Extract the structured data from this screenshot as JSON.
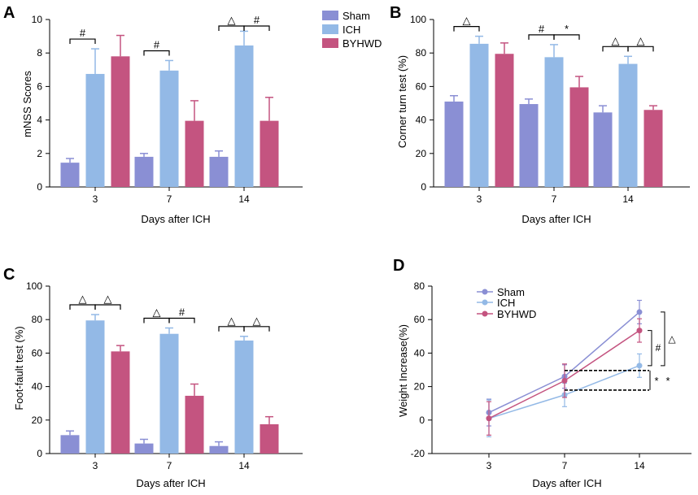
{
  "colors": {
    "Sham": "#8a8fd4",
    "ICH": "#93b9e6",
    "BYHWD": "#c45480"
  },
  "legend": [
    "Sham",
    "ICH",
    "BYHWD"
  ],
  "chart_data": [
    {
      "panel": "A",
      "type": "bar",
      "xlabel": "Days after ICH",
      "ylabel": "mNSS Scores",
      "categories": [
        "3",
        "7",
        "14"
      ],
      "ylim": [
        0,
        10
      ],
      "yticks": [
        0,
        2,
        4,
        6,
        8,
        10
      ],
      "series": [
        {
          "name": "Sham",
          "values": [
            1.45,
            1.8,
            1.8
          ],
          "errors": [
            0.25,
            0.2,
            0.35
          ]
        },
        {
          "name": "ICH",
          "values": [
            6.75,
            6.95,
            8.45
          ],
          "errors": [
            1.5,
            0.6,
            0.85
          ]
        },
        {
          "name": "BYHWD",
          "values": [
            7.8,
            3.95,
            3.95
          ],
          "errors": [
            1.25,
            1.2,
            1.4
          ]
        }
      ],
      "annotations": [
        {
          "group": 0,
          "between": [
            0,
            1
          ],
          "symbol": "#"
        },
        {
          "group": 1,
          "between": [
            0,
            1
          ],
          "symbol": "#"
        },
        {
          "group": 2,
          "between": [
            0,
            1
          ],
          "symbol": "△"
        },
        {
          "group": 2,
          "between": [
            1,
            2
          ],
          "symbol": "#"
        }
      ]
    },
    {
      "panel": "B",
      "type": "bar",
      "xlabel": "Days after ICH",
      "ylabel": "Corner turn test (%)",
      "categories": [
        "3",
        "7",
        "14"
      ],
      "ylim": [
        0,
        100
      ],
      "yticks": [
        0,
        20,
        40,
        60,
        80,
        100
      ],
      "series": [
        {
          "name": "Sham",
          "values": [
            51,
            49.5,
            44.5
          ],
          "errors": [
            3.5,
            3,
            4
          ]
        },
        {
          "name": "ICH",
          "values": [
            85.5,
            77.5,
            73.5
          ],
          "errors": [
            4.5,
            7.5,
            4.5
          ]
        },
        {
          "name": "BYHWD",
          "values": [
            79.5,
            59.5,
            46
          ],
          "errors": [
            6.5,
            6.5,
            2.5
          ]
        }
      ],
      "annotations": [
        {
          "group": 0,
          "between": [
            0,
            1
          ],
          "symbol": "△"
        },
        {
          "group": 1,
          "between": [
            0,
            1
          ],
          "symbol": "#"
        },
        {
          "group": 1,
          "between": [
            1,
            2
          ],
          "symbol": "*"
        },
        {
          "group": 2,
          "between": [
            0,
            1
          ],
          "symbol": "△"
        },
        {
          "group": 2,
          "between": [
            1,
            2
          ],
          "symbol": "△"
        }
      ]
    },
    {
      "panel": "C",
      "type": "bar",
      "xlabel": "Days after ICH",
      "ylabel": "Foot-fault test (%)",
      "categories": [
        "3",
        "7",
        "14"
      ],
      "ylim": [
        0,
        100
      ],
      "yticks": [
        0,
        20,
        40,
        60,
        80,
        100
      ],
      "series": [
        {
          "name": "Sham",
          "values": [
            11,
            6,
            4.5
          ],
          "errors": [
            2.5,
            2.5,
            2.5
          ]
        },
        {
          "name": "ICH",
          "values": [
            79.5,
            71.5,
            67.5
          ],
          "errors": [
            3.5,
            3.5,
            2.5
          ]
        },
        {
          "name": "BYHWD",
          "values": [
            61,
            34.5,
            17.5
          ],
          "errors": [
            3.5,
            7,
            4.5
          ]
        }
      ],
      "annotations": [
        {
          "group": 0,
          "between": [
            0,
            1
          ],
          "symbol": "△"
        },
        {
          "group": 0,
          "between": [
            1,
            2
          ],
          "symbol": "△"
        },
        {
          "group": 1,
          "between": [
            0,
            1
          ],
          "symbol": "△"
        },
        {
          "group": 1,
          "between": [
            1,
            2
          ],
          "symbol": "#"
        },
        {
          "group": 2,
          "between": [
            0,
            1
          ],
          "symbol": "△"
        },
        {
          "group": 2,
          "between": [
            1,
            2
          ],
          "symbol": "△"
        }
      ]
    },
    {
      "panel": "D",
      "type": "line",
      "xlabel": "Days after ICH",
      "ylabel": "Weight Increase(%)",
      "x": [
        "3",
        "7",
        "14"
      ],
      "ylim": [
        -20,
        80
      ],
      "yticks": [
        -20,
        0,
        20,
        40,
        60,
        80
      ],
      "series": [
        {
          "name": "Sham",
          "values": [
            4.5,
            26,
            64.5
          ],
          "errors": [
            8,
            7,
            7
          ]
        },
        {
          "name": "ICH",
          "values": [
            1,
            15,
            32.5
          ],
          "errors": [
            11,
            7,
            7
          ]
        },
        {
          "name": "BYHWD",
          "values": [
            1,
            23.5,
            53.5
          ],
          "errors": [
            10,
            10,
            7
          ]
        }
      ],
      "annotations": [
        {
          "between": [
            "BYHWD",
            "ICH"
          ],
          "at": "14",
          "symbol": "#"
        },
        {
          "between": [
            "Sham",
            "ICH"
          ],
          "at": "14",
          "symbol": "△"
        },
        {
          "between": [
            "7",
            "14"
          ],
          "symbol": "*"
        }
      ]
    }
  ]
}
